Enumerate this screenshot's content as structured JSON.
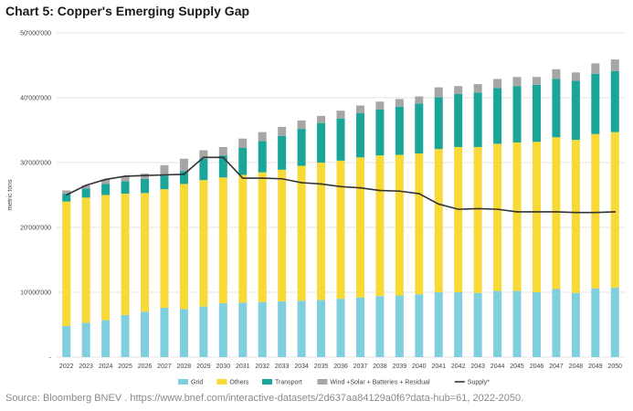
{
  "title": "Chart 5: Copper's Emerging Supply Gap",
  "source": "Source: Bloomberg BNEV . https://www.bnef.com/interactive-datasets/2d637aa84129a0f6?data-hub=61, 2022-2050.",
  "chart_data": {
    "type": "bar",
    "stacked": true,
    "title": "Chart 5: Copper's Emerging Supply Gap",
    "xlabel": "",
    "ylabel": "metric tons",
    "ylim": [
      0,
      50000000
    ],
    "yticks": [
      {
        "value": 0,
        "label": "-"
      },
      {
        "value": 10000000,
        "label": "10'000'000"
      },
      {
        "value": 20000000,
        "label": "20'000'000"
      },
      {
        "value": 30000000,
        "label": "30'000'000"
      },
      {
        "value": 40000000,
        "label": "40'000'000"
      },
      {
        "value": 50000000,
        "label": "50'000'000"
      }
    ],
    "grid": true,
    "legend_position": "bottom",
    "categories": [
      "2022",
      "2023",
      "2024",
      "2025",
      "2026",
      "2027",
      "2028",
      "2029",
      "2030",
      "2031",
      "2032",
      "2033",
      "2034",
      "2035",
      "2036",
      "2037",
      "2038",
      "2039",
      "2040",
      "2041",
      "2042",
      "2043",
      "2044",
      "2045",
      "2046",
      "2047",
      "2048",
      "2049",
      "2050"
    ],
    "series": [
      {
        "name": "Grid",
        "kind": "bar",
        "color": "#7fcfdf",
        "values": [
          4800000,
          5300000,
          5700000,
          6500000,
          7000000,
          7600000,
          7400000,
          7800000,
          8300000,
          8400000,
          8500000,
          8600000,
          8700000,
          8800000,
          9000000,
          9200000,
          9400000,
          9500000,
          9700000,
          10000000,
          10000000,
          9900000,
          10200000,
          10200000,
          10000000,
          10500000,
          9900000,
          10600000,
          10700000
        ]
      },
      {
        "name": "Others",
        "kind": "bar",
        "color": "#f7d937",
        "values": [
          19200000,
          19300000,
          19300000,
          18700000,
          18300000,
          18300000,
          19300000,
          19500000,
          19400000,
          19700000,
          20000000,
          20300000,
          20800000,
          21200000,
          21300000,
          21600000,
          21700000,
          21700000,
          21700000,
          22100000,
          22400000,
          22500000,
          22700000,
          22900000,
          23200000,
          23400000,
          23600000,
          23800000,
          24000000
        ]
      },
      {
        "name": "Transport",
        "kind": "bar",
        "color": "#19a597",
        "values": [
          1200000,
          1400000,
          1700000,
          1900000,
          2200000,
          2100000,
          2000000,
          3300000,
          3400000,
          4200000,
          4800000,
          5200000,
          5700000,
          6100000,
          6500000,
          6800000,
          7100000,
          7400000,
          7700000,
          8000000,
          8200000,
          8400000,
          8600000,
          8700000,
          8800000,
          9000000,
          9100000,
          9300000,
          9400000
        ]
      },
      {
        "name": "Wind +Solar + Batteries + Residual",
        "kind": "bar",
        "color": "#a6a6a6",
        "values": [
          500000,
          500000,
          700000,
          800000,
          800000,
          1600000,
          1900000,
          1300000,
          1300000,
          1400000,
          1400000,
          1400000,
          1300000,
          1100000,
          1200000,
          1200000,
          1200000,
          1200000,
          1100000,
          1500000,
          1200000,
          1300000,
          1400000,
          1400000,
          1200000,
          1500000,
          1300000,
          1600000,
          1800000
        ]
      },
      {
        "name": "Supply*",
        "kind": "line",
        "color": "#333333",
        "values": [
          25000000,
          26500000,
          27400000,
          27900000,
          28000000,
          28100000,
          28200000,
          30800000,
          30800000,
          27600000,
          27600000,
          27500000,
          26900000,
          26700000,
          26300000,
          26100000,
          25700000,
          25600000,
          25200000,
          23600000,
          22800000,
          22900000,
          22800000,
          22400000,
          22400000,
          22400000,
          22300000,
          22300000,
          22400000
        ]
      }
    ]
  }
}
